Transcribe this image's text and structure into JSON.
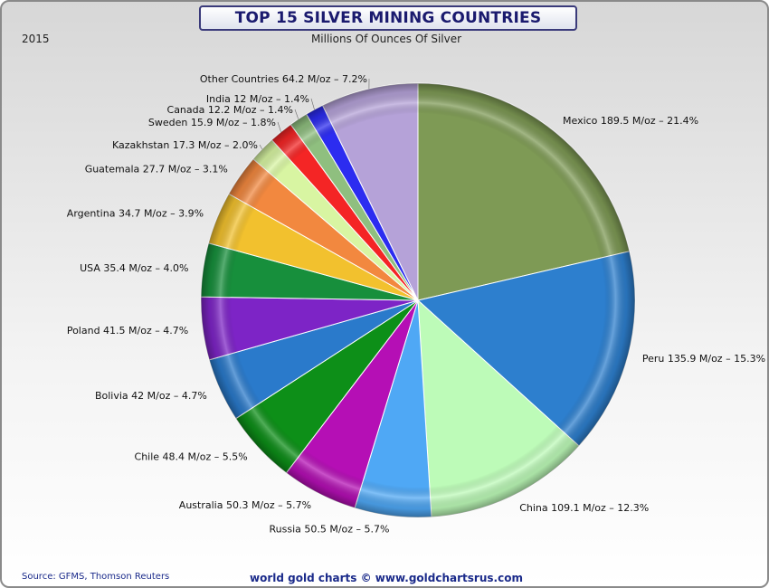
{
  "page": {
    "title": "TOP 15 SILVER MINING COUNTRIES",
    "year": "2015",
    "subtitle": "Millions Of Ounces Of Silver",
    "source": "Source: GFMS, Thomson Reuters",
    "footer": "world gold charts © www.goldchartsrus.com"
  },
  "chart_data": {
    "type": "pie",
    "title": "TOP 15 SILVER MINING COUNTRIES",
    "subtitle": "Millions Of Ounces Of Silver",
    "unit": "M/oz",
    "start": "12 o'clock, clockwise",
    "slices": [
      {
        "name": "Mexico",
        "value": 189.5,
        "percent": 21.4,
        "label": "Mexico 189.5 M/oz – 21.4%",
        "color": "#7e9a55"
      },
      {
        "name": "Peru",
        "value": 135.9,
        "percent": 15.3,
        "label": "Peru 135.9 M/oz – 15.3%",
        "color": "#2d7fce"
      },
      {
        "name": "China",
        "value": 109.1,
        "percent": 12.3,
        "label": "China 109.1 M/oz – 12.3%",
        "color": "#bdfbb8"
      },
      {
        "name": "Russia",
        "value": 50.5,
        "percent": 5.7,
        "label": "Russia 50.5 M/oz – 5.7%",
        "color": "#4fa8f5"
      },
      {
        "name": "Australia",
        "value": 50.3,
        "percent": 5.7,
        "label": "Australia 50.3 M/oz – 5.7%",
        "color": "#b50fb5"
      },
      {
        "name": "Chile",
        "value": 48.4,
        "percent": 5.5,
        "label": "Chile 48.4 M/oz – 5.5%",
        "color": "#0d8f18"
      },
      {
        "name": "Bolivia",
        "value": 42,
        "percent": 4.7,
        "label": "Bolivia 42 M/oz – 4.7%",
        "color": "#2a7acb"
      },
      {
        "name": "Poland",
        "value": 41.5,
        "percent": 4.7,
        "label": "Poland 41.5 M/oz – 4.7%",
        "color": "#7d24c6"
      },
      {
        "name": "USA",
        "value": 35.4,
        "percent": 4.0,
        "label": "USA 35.4 M/oz – 4.0%",
        "color": "#178f3c"
      },
      {
        "name": "Argentina",
        "value": 34.7,
        "percent": 3.9,
        "label": "Argentina 34.7 M/oz – 3.9%",
        "color": "#f2c12e"
      },
      {
        "name": "Guatemala",
        "value": 27.7,
        "percent": 3.1,
        "label": "Guatemala 27.7 M/oz – 3.1%",
        "color": "#f2883f"
      },
      {
        "name": "Kazakhstan",
        "value": 17.3,
        "percent": 2.0,
        "label": "Kazakhstan 17.3 M/oz – 2.0%",
        "color": "#d8f5a2"
      },
      {
        "name": "Sweden",
        "value": 15.9,
        "percent": 1.8,
        "label": "Sweden 15.9 M/oz – 1.8%",
        "color": "#f42525"
      },
      {
        "name": "Canada",
        "value": 12.2,
        "percent": 1.4,
        "label": "Canada 12.2 M/oz – 1.4%",
        "color": "#8fbf7f"
      },
      {
        "name": "India",
        "value": 12,
        "percent": 1.4,
        "label": "India 12 M/oz – 1.4%",
        "color": "#2c2cf0"
      },
      {
        "name": "Other Countries",
        "value": 64.2,
        "percent": 7.2,
        "label": "Other Countries 64.2 M/oz – 7.2%",
        "color": "#b5a2d8"
      }
    ]
  }
}
